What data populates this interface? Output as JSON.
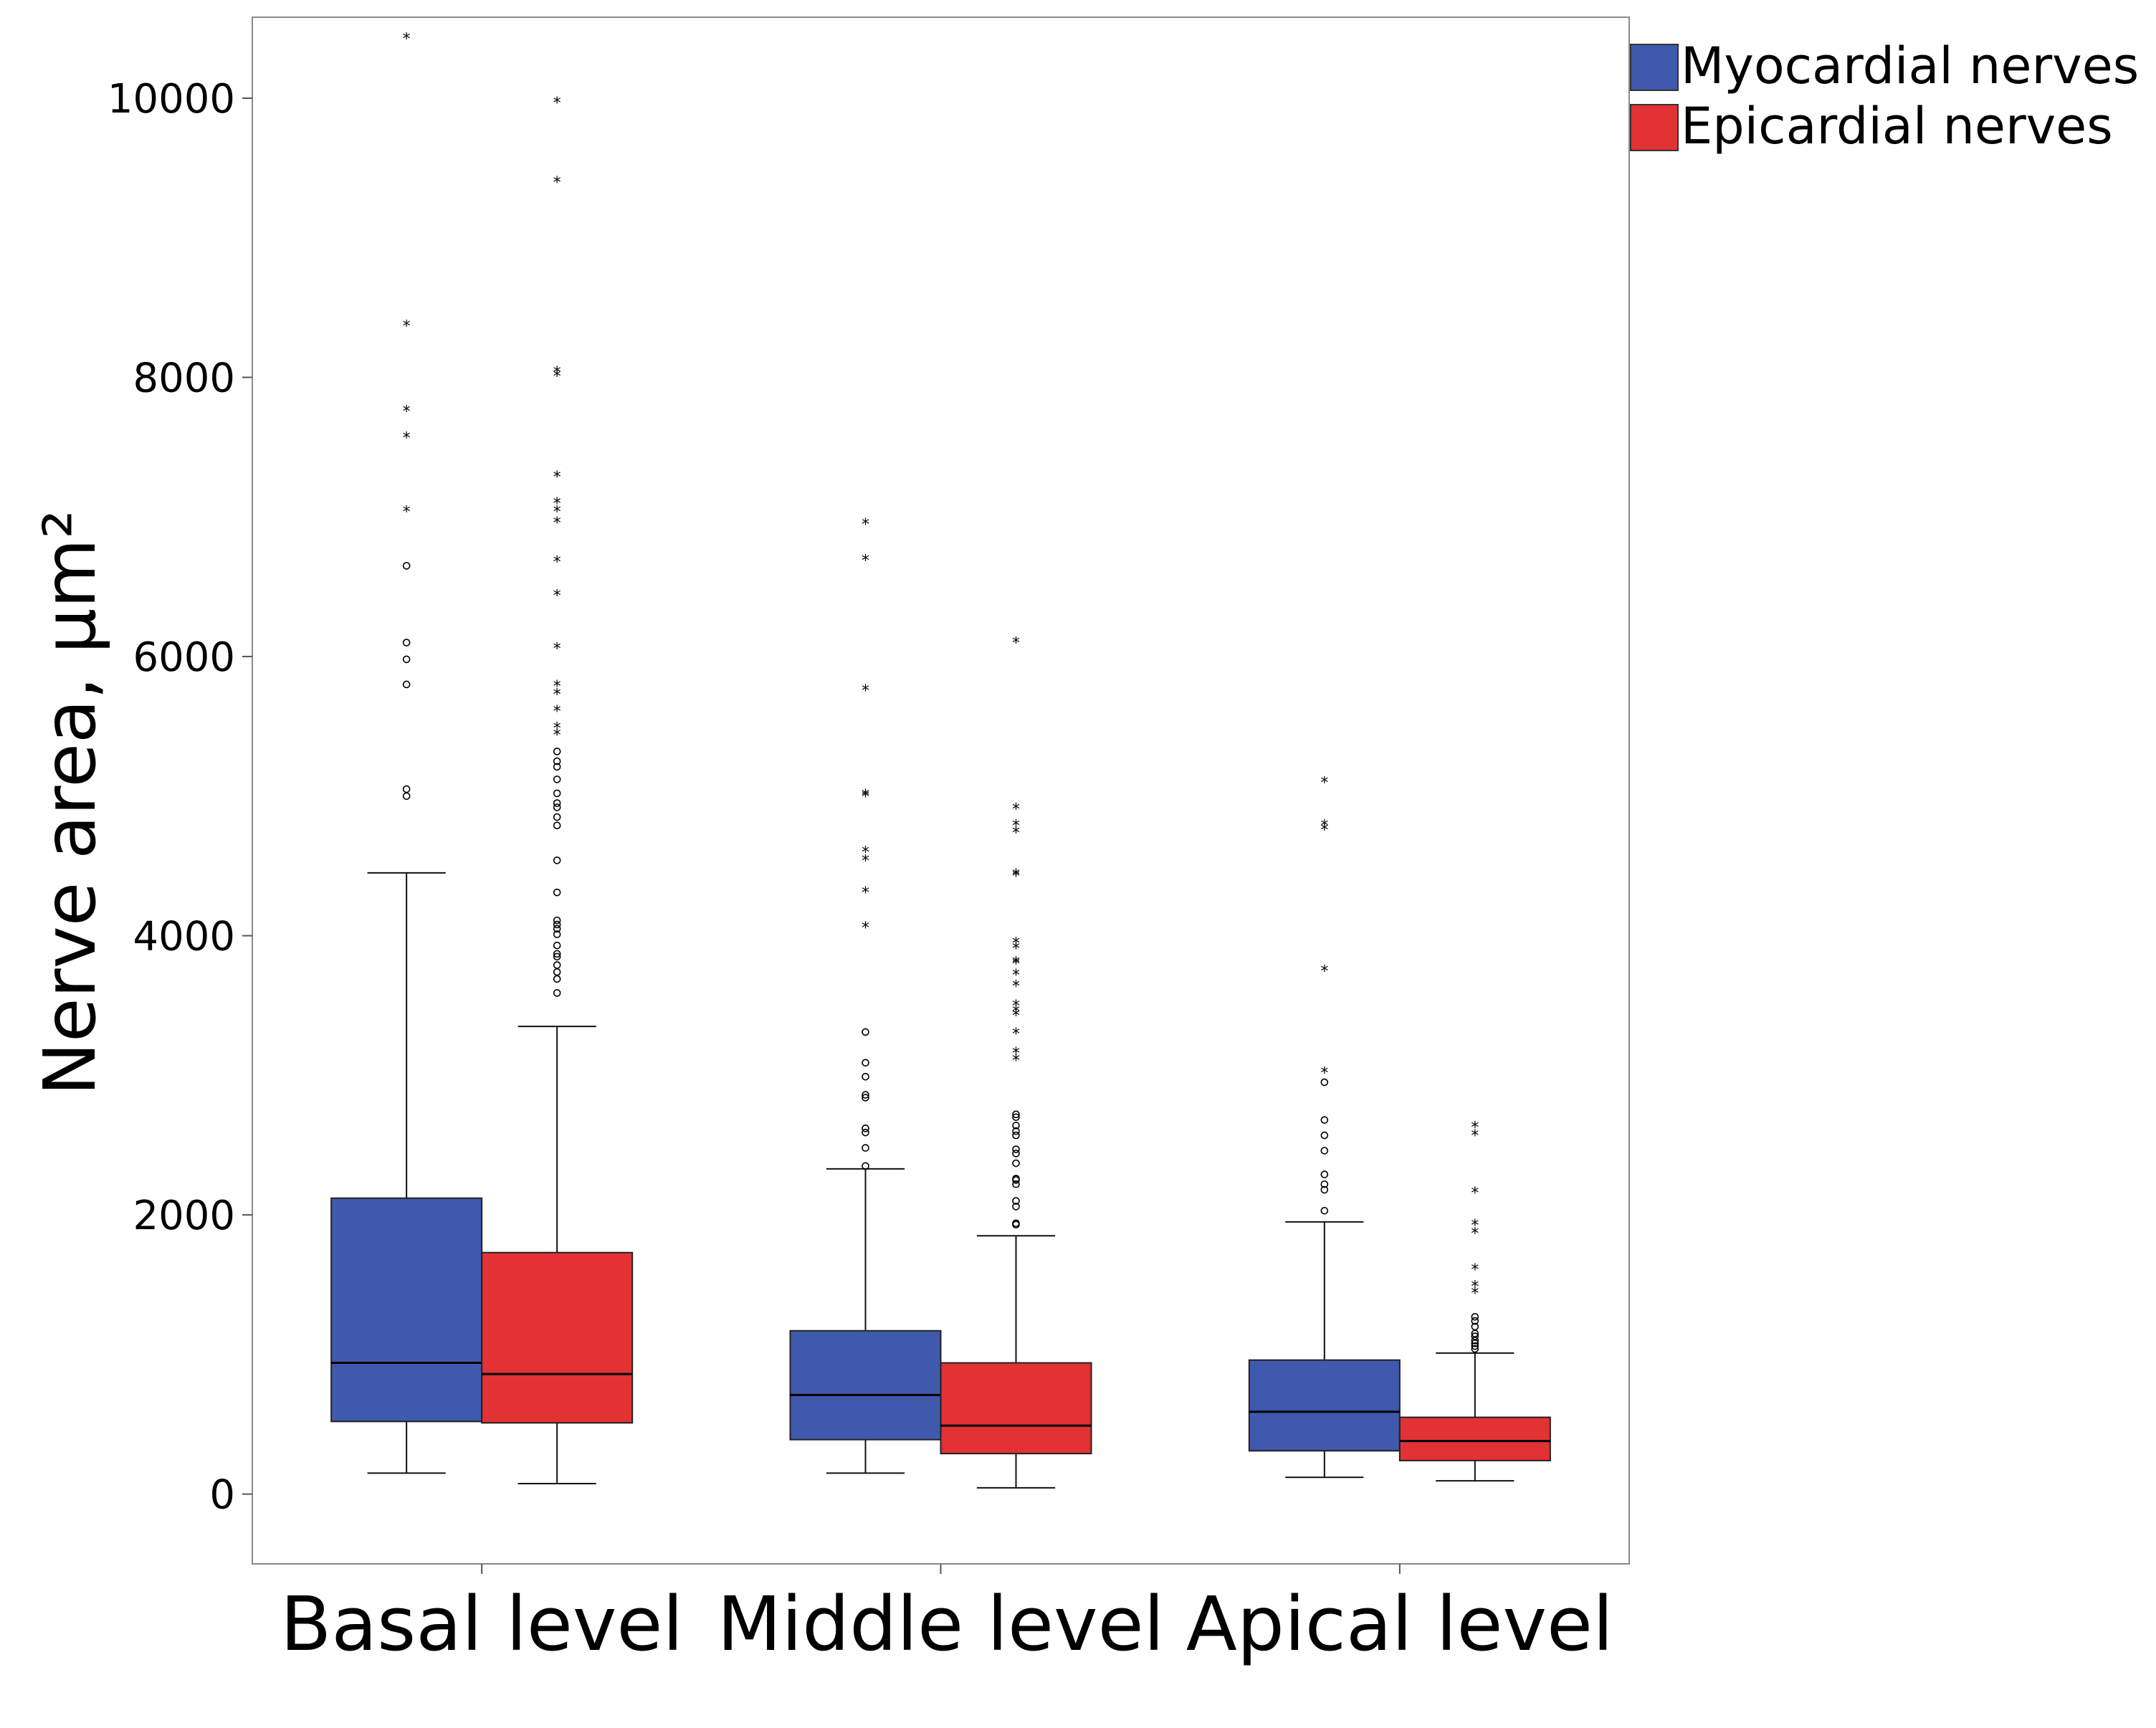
{
  "chart_data": {
    "type": "boxplot",
    "ylabel": "Nerve area, µm²",
    "xlabel": "",
    "ylim": [
      -500,
      10580
    ],
    "yticks": [
      0,
      2000,
      4000,
      6000,
      8000,
      10000
    ],
    "ytick_labels": [
      "0",
      "2000",
      "4000",
      "6000",
      "8000",
      "10000"
    ],
    "grid": false,
    "legend_position": "top-right",
    "categories": [
      "Basal level",
      "Middle level",
      "Apical level"
    ],
    "series": [
      {
        "name": "Myocardial nerves",
        "color": "#3f59ad",
        "boxes": [
          {
            "whisker_low": 150,
            "q1": 520,
            "median": 940,
            "q3": 2120,
            "whisker_high": 4450,
            "outliers": [
              5000,
              5050,
              5800,
              5980,
              6100,
              6650
            ],
            "extremes": [
              7050,
              7580,
              7770,
              8380,
              10440
            ]
          },
          {
            "whisker_low": 150,
            "q1": 390,
            "median": 710,
            "q3": 1170,
            "whisker_high": 2330,
            "outliers": [
              2350,
              2480,
              2590,
              2620,
              2840,
              2860,
              2990,
              3090,
              3310
            ],
            "extremes": [
              4070,
              4320,
              4550,
              4610,
              5010,
              5020,
              5770,
              6700,
              6960
            ]
          },
          {
            "whisker_low": 120,
            "q1": 310,
            "median": 590,
            "q3": 960,
            "whisker_high": 1950,
            "outliers": [
              2030,
              2180,
              2220,
              2290,
              2460,
              2570,
              2680,
              2950
            ],
            "extremes": [
              3030,
              3760,
              4770,
              4800,
              5110
            ]
          }
        ]
      },
      {
        "name": "Epicardial nerves",
        "color": "#e23234",
        "boxes": [
          {
            "whisker_low": 75,
            "q1": 510,
            "median": 860,
            "q3": 1730,
            "whisker_high": 3350,
            "outliers": [
              3590,
              3690,
              3740,
              3790,
              3850,
              3870,
              3930,
              4010,
              4050,
              4080,
              4110,
              4310,
              4540,
              4790,
              4850,
              4920,
              4950,
              5020,
              5120,
              5210,
              5250,
              5320
            ],
            "extremes": [
              5450,
              5500,
              5620,
              5740,
              5800,
              6070,
              6450,
              6690,
              6970,
              7050,
              7110,
              7300,
              8020,
              8050,
              9410,
              9980
            ]
          },
          {
            "whisker_low": 45,
            "q1": 290,
            "median": 490,
            "q3": 940,
            "whisker_high": 1850,
            "outliers": [
              1930,
              1940,
              2060,
              2100,
              2220,
              2250,
              2260,
              2370,
              2440,
              2470,
              2570,
              2600,
              2640,
              2700,
              2720
            ],
            "extremes": [
              3120,
              3170,
              3310,
              3440,
              3470,
              3510,
              3650,
              3730,
              3810,
              3820,
              3920,
              3960,
              4440,
              4450,
              4750,
              4800,
              4920,
              6110
            ]
          },
          {
            "whisker_low": 95,
            "q1": 240,
            "median": 380,
            "q3": 550,
            "whisker_high": 1010,
            "outliers": [
              1040,
              1060,
              1080,
              1100,
              1130,
              1150,
              1200,
              1240,
              1270
            ],
            "extremes": [
              1450,
              1500,
              1620,
              1880,
              1940,
              2170,
              2580,
              2640
            ]
          }
        ]
      }
    ]
  }
}
